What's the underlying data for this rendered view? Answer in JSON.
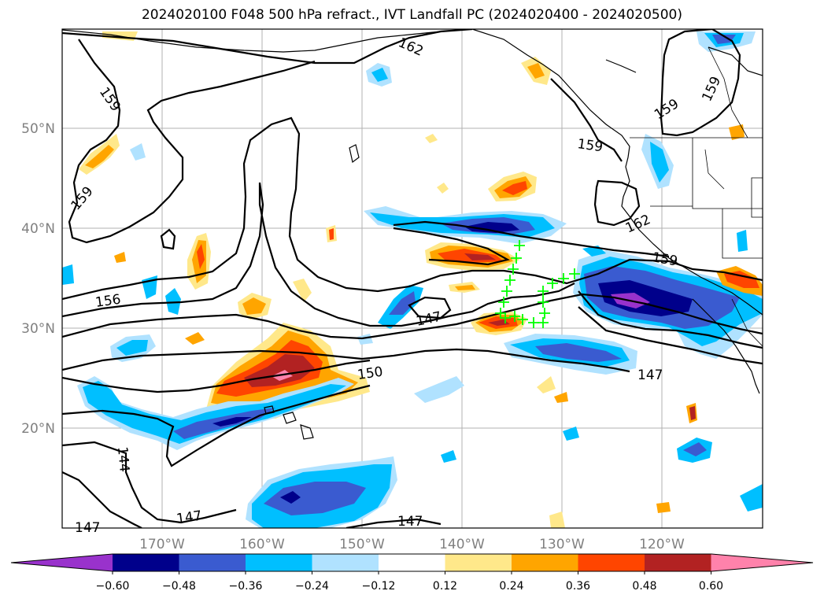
{
  "title": "2024020100 F048 500 hPa refract., IVT Landfall PC (2024020400 - 2024020500)",
  "map": {
    "lon_labels": [
      "170°W",
      "160°W",
      "150°W",
      "140°W",
      "130°W",
      "120°W"
    ],
    "lat_labels": [
      "50°N",
      "40°N",
      "30°N",
      "20°N"
    ],
    "contour_labels": [
      "162",
      "162",
      "159",
      "159",
      "159",
      "159",
      "159",
      "159",
      "156",
      "150",
      "147",
      "147",
      "147",
      "147",
      "144",
      "147"
    ],
    "marker_color": "#00ff00",
    "marker_symbol": "+"
  },
  "colorbar": {
    "colors": [
      "#9932cc",
      "#00008b",
      "#3a5bd0",
      "#00bfff",
      "#b0e2ff",
      "#ffffff",
      "#ffe88a",
      "#ffa500",
      "#ff4500",
      "#b22222",
      "#ff82ab"
    ],
    "ticks": [
      "−0.60",
      "−0.48",
      "−0.36",
      "−0.24",
      "−0.12",
      "0.12",
      "0.24",
      "0.36",
      "0.48",
      "0.60"
    ]
  }
}
